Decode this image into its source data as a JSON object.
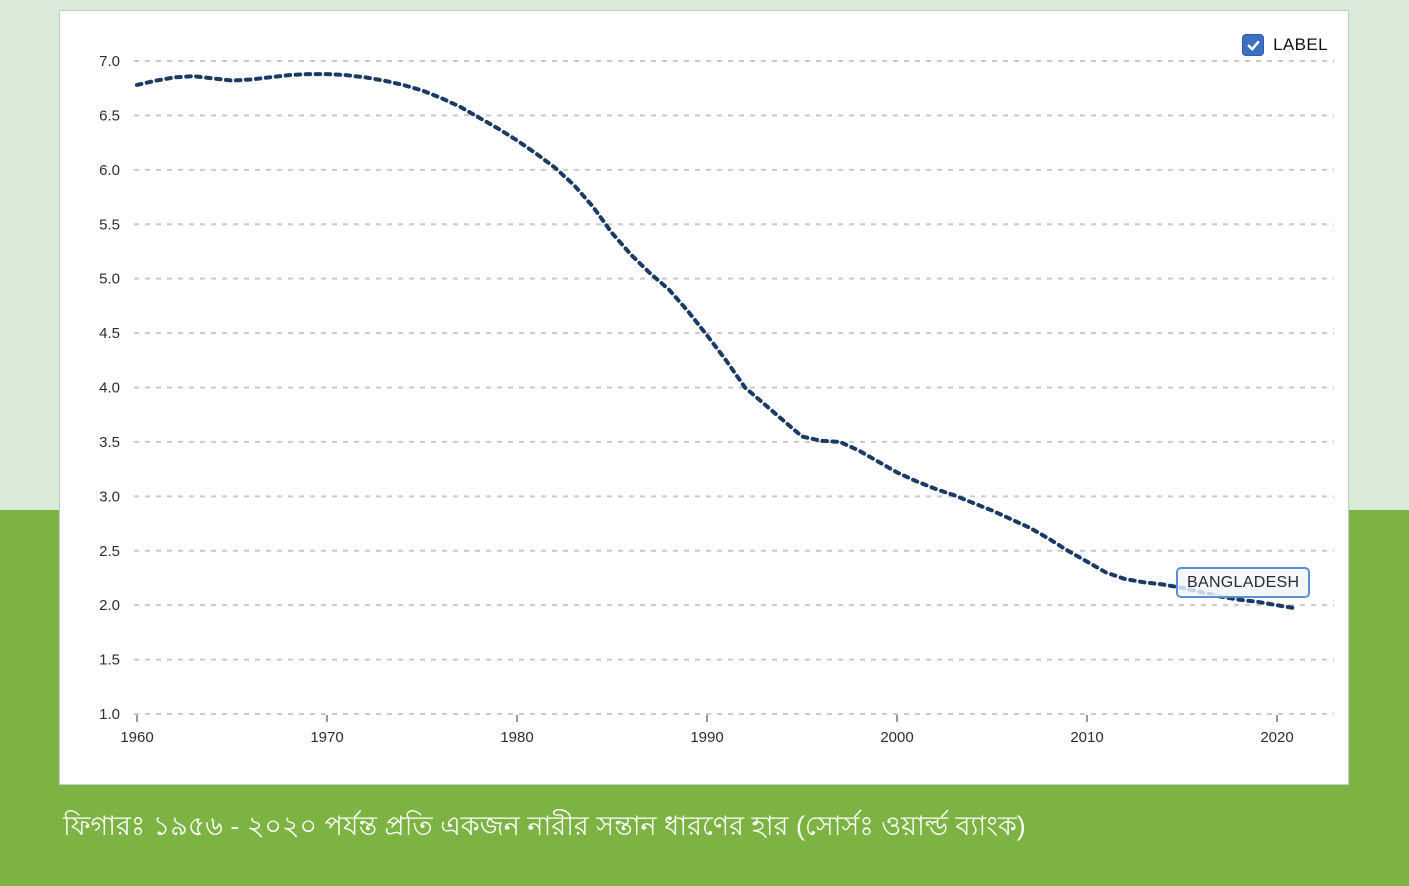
{
  "page": {
    "background_top_color": "#dbead8",
    "background_bottom_color": "#7cb342",
    "panel_color": "#ffffff"
  },
  "legend": {
    "label": "LABEL",
    "checked": true,
    "checkbox_color": "#3e6fc1"
  },
  "series_label": {
    "text": "BANGLADESH"
  },
  "caption": {
    "text": "ফিগারঃ ১৯৫৬ - ২০২০ পর্যন্ত প্রতি একজন নারীর সন্তান ধারণের হার (সোর্সঃ ওয়ার্ল্ড ব্যাংক)"
  },
  "chart_data": {
    "type": "line",
    "title": "",
    "xlabel": "",
    "ylabel": "",
    "xlim": [
      1959.5,
      2023
    ],
    "ylim": [
      1.0,
      7.0
    ],
    "x_ticks": [
      1960,
      1970,
      1980,
      1990,
      2000,
      2010,
      2020
    ],
    "y_ticks": [
      7.0,
      6.5,
      6.0,
      5.5,
      5.0,
      4.5,
      4.0,
      3.5,
      3.0,
      2.5,
      2.0,
      1.5,
      1.0
    ],
    "grid": "horizontal-dashed",
    "legend_position": "top-right",
    "line_style": "dotted",
    "line_color": "#1b3a66",
    "grid_color": "#c9c9c9",
    "axis_label_color": "#2e2e2e",
    "tick_color": "#9a9a9a",
    "series": [
      {
        "name": "BANGLADESH",
        "x": [
          1960,
          1961,
          1962,
          1963,
          1964,
          1965,
          1966,
          1967,
          1968,
          1969,
          1970,
          1971,
          1972,
          1973,
          1974,
          1975,
          1976,
          1977,
          1978,
          1979,
          1980,
          1981,
          1982,
          1983,
          1984,
          1985,
          1986,
          1987,
          1988,
          1989,
          1990,
          1991,
          1992,
          1993,
          1994,
          1995,
          1996,
          1997,
          1998,
          1999,
          2000,
          2001,
          2002,
          2003,
          2004,
          2005,
          2006,
          2007,
          2008,
          2009,
          2010,
          2011,
          2012,
          2013,
          2014,
          2015,
          2016,
          2017,
          2018,
          2019,
          2020,
          2021
        ],
        "values": [
          6.78,
          6.82,
          6.85,
          6.86,
          6.84,
          6.82,
          6.83,
          6.85,
          6.87,
          6.88,
          6.88,
          6.87,
          6.85,
          6.82,
          6.78,
          6.73,
          6.66,
          6.58,
          6.48,
          6.38,
          6.27,
          6.15,
          6.02,
          5.86,
          5.66,
          5.42,
          5.22,
          5.05,
          4.9,
          4.7,
          4.48,
          4.25,
          4.0,
          3.85,
          3.7,
          3.55,
          3.51,
          3.5,
          3.42,
          3.32,
          3.22,
          3.14,
          3.07,
          3.01,
          2.94,
          2.87,
          2.79,
          2.71,
          2.61,
          2.5,
          2.4,
          2.3,
          2.24,
          2.21,
          2.19,
          2.16,
          2.12,
          2.08,
          2.05,
          2.03,
          2.0,
          1.97
        ]
      }
    ]
  }
}
